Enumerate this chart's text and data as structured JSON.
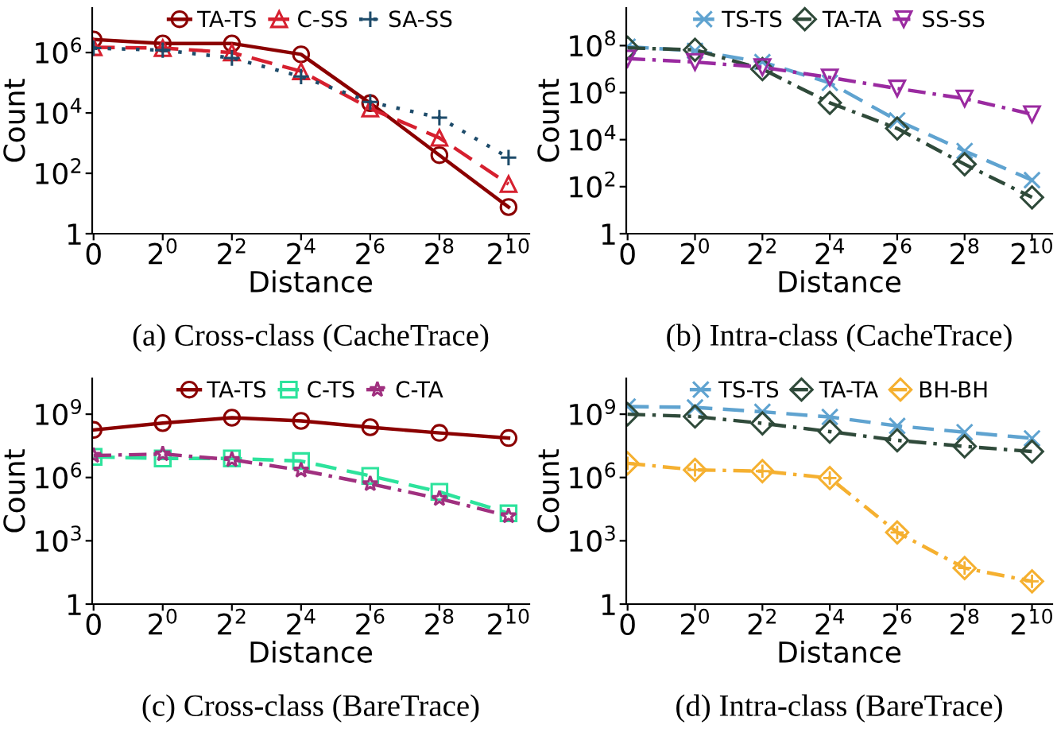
{
  "chart_data": [
    {
      "type": "line",
      "title": "(a) Cross-class (CacheTrace)",
      "xlabel": "Distance",
      "ylabel": "Count",
      "log": "y",
      "legend": "top",
      "grid": false,
      "categories": [
        "0",
        "2$^{0}$",
        "2$^{2}$",
        "2$^{4}$",
        "2$^{6}$",
        "2$^{8}$",
        "2$^{10}$"
      ],
      "ylim": [
        1,
        30000000
      ],
      "yticks": [
        1,
        {
          "value": 100,
          "label": "10$^{2}$"
        },
        {
          "value": 10000,
          "label": "10$^{4}$"
        },
        {
          "value": 1000000,
          "label": "10$^{6}$"
        }
      ],
      "series": [
        {
          "name": "TA-TS",
          "color": "#8b0000",
          "marker": "circle",
          "line_style": "solid",
          "values": [
            2700000,
            2000000,
            2000000,
            870000,
            21000,
            400,
            7.6
          ]
        },
        {
          "name": "C-SS",
          "color": "#d6202f",
          "marker": "triangle",
          "line_style": "dashed",
          "values": [
            1500000,
            1400000,
            1000000,
            240000,
            14000,
            1500,
            44
          ]
        },
        {
          "name": "SA-SS",
          "color": "#1d4b6a",
          "marker": "plus",
          "line_style": "dotted",
          "values": [
            1400000,
            1200000,
            660000,
            160000,
            23000,
            7000,
            330
          ]
        }
      ]
    },
    {
      "type": "line",
      "title": "(b) Intra-class (CacheTrace)",
      "xlabel": "Distance",
      "ylabel": "Count",
      "log": "y",
      "legend": "top",
      "grid": false,
      "categories": [
        "0",
        "2$^{0}$",
        "2$^{2}$",
        "2$^{4}$",
        "2$^{6}$",
        "2$^{8}$",
        "2$^{10}$"
      ],
      "ylim": [
        1,
        4000000000
      ],
      "yticks": [
        1,
        {
          "value": 100,
          "label": "10$^{2}$"
        },
        {
          "value": 10000,
          "label": "10$^{4}$"
        },
        {
          "value": 1000000,
          "label": "10$^{6}$"
        },
        {
          "value": 100000000,
          "label": "10$^{8}$"
        }
      ],
      "series": [
        {
          "name": "TS-TS",
          "color": "#5fa3d0",
          "marker": "cross",
          "line_style": "dashed",
          "values": [
            90000000,
            60000000,
            20000000,
            2600000,
            66000,
            3300,
            190
          ]
        },
        {
          "name": "TA-TA",
          "color": "#2f4a3a",
          "marker": "diamond",
          "line_style": "dashdot",
          "values": [
            80000000,
            66000000,
            10000000,
            370000,
            30000,
            900,
            35
          ]
        },
        {
          "name": "SS-SS",
          "color": "#9a2aa0",
          "marker": "triangle_down",
          "line_style": "dashdot",
          "values": [
            28000000,
            20000000,
            12000000,
            4400000,
            1500000,
            560000,
            120000
          ]
        }
      ]
    },
    {
      "type": "line",
      "title": "(c) Cross-class (BareTrace)",
      "xlabel": "Distance",
      "ylabel": "Count",
      "log": "y",
      "legend": "top",
      "grid": false,
      "categories": [
        "0",
        "2$^{0}$",
        "2$^{2}$",
        "2$^{4}$",
        "2$^{6}$",
        "2$^{8}$",
        "2$^{10}$"
      ],
      "ylim": [
        1,
        50000000000
      ],
      "yticks": [
        1,
        {
          "value": 1000,
          "label": "10$^{3}$"
        },
        {
          "value": 1000000,
          "label": "10$^{6}$"
        },
        {
          "value": 1000000000,
          "label": "10$^{9}$"
        }
      ],
      "series": [
        {
          "name": "TA-TS",
          "color": "#8b0000",
          "marker": "circle",
          "line_style": "solid",
          "values": [
            180000000,
            380000000,
            680000000,
            480000000,
            240000000,
            130000000,
            74000000
          ]
        },
        {
          "name": "C-TS",
          "color": "#2de39c",
          "marker": "square",
          "line_style": "dashed",
          "values": [
            9500000,
            8000000,
            8000000,
            6000000,
            1200000,
            210000,
            20000
          ]
        },
        {
          "name": "C-TA",
          "color": "#a0307f",
          "marker": "star",
          "line_style": "dashdot",
          "values": [
            11000000,
            13000000,
            7000000,
            2200000,
            500000,
            100000,
            15000
          ]
        }
      ]
    },
    {
      "type": "line",
      "title": "(d) Intra-class (BareTrace)",
      "xlabel": "Distance",
      "ylabel": "Count",
      "log": "y",
      "legend": "top",
      "grid": false,
      "categories": [
        "0",
        "2$^{0}$",
        "2$^{2}$",
        "2$^{4}$",
        "2$^{6}$",
        "2$^{8}$",
        "2$^{10}$"
      ],
      "ylim": [
        1,
        50000000000
      ],
      "yticks": [
        1,
        {
          "value": 1000,
          "label": "10$^{3}$"
        },
        {
          "value": 1000000,
          "label": "10$^{6}$"
        },
        {
          "value": 1000000000,
          "label": "10$^{9}$"
        }
      ],
      "series": [
        {
          "name": "TS-TS",
          "color": "#5fa3d0",
          "marker": "cross",
          "line_style": "dashed",
          "values": [
            2300000000,
            2100000000,
            1300000000,
            740000000,
            280000000,
            140000000,
            72000000
          ]
        },
        {
          "name": "TA-TA",
          "color": "#2f4a3a",
          "marker": "diamond",
          "line_style": "dashdot",
          "values": [
            1000000000,
            780000000,
            370000000,
            150000000,
            58000000,
            30000000,
            17000000
          ]
        },
        {
          "name": "BH-BH",
          "color": "#f5b030",
          "marker": "diamond_plus",
          "line_style": "dashdot",
          "values": [
            4700000,
            2300000,
            2000000,
            940000,
            2500,
            51,
            12
          ]
        }
      ]
    }
  ]
}
